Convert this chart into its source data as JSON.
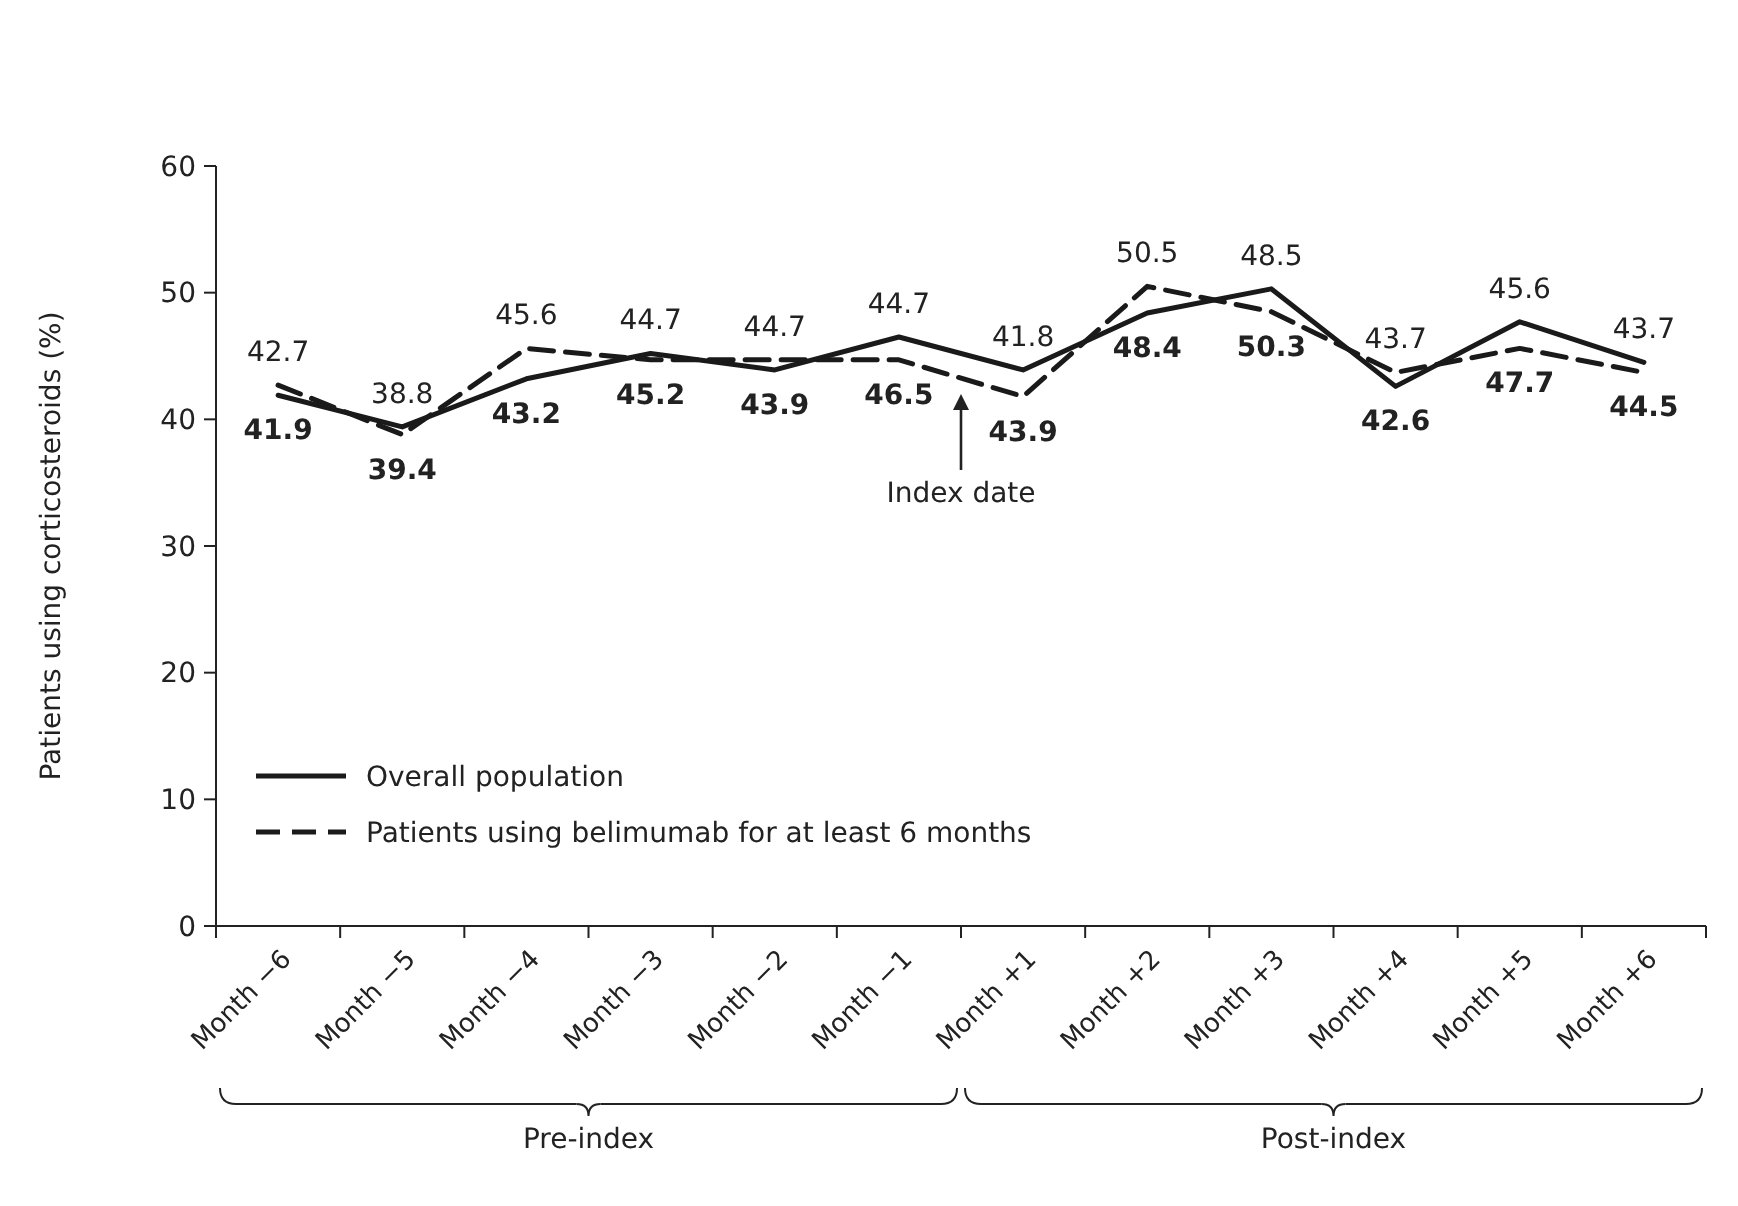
{
  "chart_data": {
    "type": "line",
    "ylabel": "Patients using corticosteroids (%)",
    "categories": [
      "Month −6",
      "Month −5",
      "Month −4",
      "Month −3",
      "Month −2",
      "Month −1",
      "Month +1",
      "Month +2",
      "Month +3",
      "Month +4",
      "Month +5",
      "Month +6"
    ],
    "series": [
      {
        "name": "Overall population",
        "color": "#1a1a1a",
        "line_style": "solid",
        "values": [
          41.9,
          39.4,
          43.2,
          45.2,
          43.9,
          46.5,
          43.9,
          48.4,
          50.3,
          42.6,
          47.7,
          44.5
        ]
      },
      {
        "name": "Patients using belimumab for at least 6 months",
        "color": "#1a1a1a",
        "line_style": "dashed",
        "values": [
          42.7,
          38.8,
          45.6,
          44.7,
          44.7,
          44.7,
          41.8,
          50.5,
          48.5,
          43.7,
          45.6,
          43.7
        ]
      }
    ],
    "ylim": [
      0,
      60
    ],
    "yticks": [
      0,
      10,
      20,
      30,
      40,
      50,
      60
    ],
    "grid": false,
    "legend": "bottom left",
    "marker": "none",
    "data_labels": true,
    "annotations": [
      "Index date",
      "Pre-index",
      "Post-index"
    ]
  }
}
